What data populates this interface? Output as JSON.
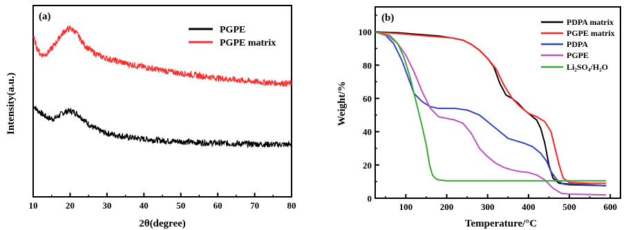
{
  "chart_data": [
    {
      "type": "line",
      "panel_label": "(a)",
      "xlabel": "2θ(degree)",
      "ylabel": "Intensity(a.u.)",
      "xlim": [
        10,
        80
      ],
      "ylim": [
        0,
        100
      ],
      "x_ticks": [
        10,
        20,
        30,
        40,
        50,
        60,
        70,
        80
      ],
      "y_ticks_shown": false,
      "legend_position": "top-right",
      "series": [
        {
          "name": "PGPE",
          "color": "#000000",
          "noise": 1.6,
          "points": [
            [
              10,
              48
            ],
            [
              11,
              45.5
            ],
            [
              12,
              44
            ],
            [
              13,
              42.5
            ],
            [
              14,
              41.3
            ],
            [
              15,
              40.8
            ],
            [
              16,
              41.2
            ],
            [
              17,
              42.4
            ],
            [
              18,
              43.8
            ],
            [
              19,
              44.6
            ],
            [
              20,
              44.9
            ],
            [
              21,
              44.4
            ],
            [
              22,
              43.2
            ],
            [
              23,
              41.6
            ],
            [
              24,
              39.8
            ],
            [
              25,
              38
            ],
            [
              26,
              36.6
            ],
            [
              27,
              35.5
            ],
            [
              28,
              34.6
            ],
            [
              29,
              33.8
            ],
            [
              30,
              33.2
            ],
            [
              35,
              31.4
            ],
            [
              40,
              30.2
            ],
            [
              45,
              29.4
            ],
            [
              50,
              28.9
            ],
            [
              55,
              28.4
            ],
            [
              60,
              28.1
            ],
            [
              65,
              27.8
            ],
            [
              70,
              27.6
            ],
            [
              75,
              27.4
            ],
            [
              80,
              27.3
            ]
          ]
        },
        {
          "name": "PGPE matrix",
          "color": "#ff2a2a",
          "noise": 1.6,
          "points": [
            [
              10,
              84
            ],
            [
              11,
              78
            ],
            [
              12,
              74.5
            ],
            [
              13,
              74.2
            ],
            [
              14,
              75.5
            ],
            [
              15,
              77.5
            ],
            [
              16,
              80
            ],
            [
              17,
              83
            ],
            [
              18,
              85.5
            ],
            [
              19,
              87.3
            ],
            [
              20,
              88
            ],
            [
              21,
              87
            ],
            [
              22,
              84.8
            ],
            [
              23,
              81.8
            ],
            [
              24,
              79.2
            ],
            [
              25,
              77.4
            ],
            [
              26,
              76
            ],
            [
              27,
              74.8
            ],
            [
              28,
              73.8
            ],
            [
              29,
              73
            ],
            [
              30,
              72.3
            ],
            [
              35,
              69.8
            ],
            [
              40,
              67.8
            ],
            [
              45,
              66.1
            ],
            [
              50,
              64.6
            ],
            [
              55,
              63.3
            ],
            [
              60,
              62.1
            ],
            [
              65,
              61.1
            ],
            [
              70,
              60.2
            ],
            [
              75,
              59.6
            ],
            [
              80,
              59.2
            ]
          ]
        }
      ]
    },
    {
      "type": "line",
      "panel_label": "(b)",
      "xlabel": "Temperature/°C",
      "ylabel": "Weight/%",
      "xlim": [
        25,
        625
      ],
      "ylim": [
        0,
        115
      ],
      "x_ticks": [
        100,
        200,
        300,
        400,
        500,
        600
      ],
      "y_ticks": [
        0,
        20,
        40,
        60,
        80,
        100
      ],
      "legend_position": "top-right",
      "series": [
        {
          "name": "PDPA matrix",
          "color": "#000000",
          "points": [
            [
              25,
              100
            ],
            [
              80,
              99.5
            ],
            [
              130,
              98.5
            ],
            [
              180,
              97.5
            ],
            [
              210,
              96.5
            ],
            [
              240,
              95
            ],
            [
              260,
              92.5
            ],
            [
              280,
              89
            ],
            [
              300,
              84
            ],
            [
              315,
              79
            ],
            [
              330,
              69
            ],
            [
              345,
              62
            ],
            [
              360,
              60
            ],
            [
              375,
              57
            ],
            [
              390,
              53
            ],
            [
              405,
              50
            ],
            [
              420,
              47
            ],
            [
              430,
              42
            ],
            [
              440,
              33
            ],
            [
              450,
              20
            ],
            [
              460,
              12
            ],
            [
              475,
              9
            ],
            [
              500,
              8.5
            ],
            [
              550,
              8
            ],
            [
              590,
              7.5
            ]
          ]
        },
        {
          "name": "PGPE matrix",
          "color": "#ff2020",
          "points": [
            [
              25,
              100
            ],
            [
              80,
              99
            ],
            [
              130,
              98
            ],
            [
              180,
              97
            ],
            [
              210,
              96.5
            ],
            [
              240,
              95
            ],
            [
              260,
              92.5
            ],
            [
              280,
              89
            ],
            [
              300,
              84
            ],
            [
              320,
              78
            ],
            [
              340,
              68
            ],
            [
              360,
              60
            ],
            [
              380,
              55
            ],
            [
              400,
              51
            ],
            [
              420,
              49
            ],
            [
              440,
              46
            ],
            [
              455,
              40
            ],
            [
              465,
              30
            ],
            [
              475,
              20
            ],
            [
              485,
              12
            ],
            [
              500,
              9.5
            ],
            [
              550,
              9
            ],
            [
              590,
              9
            ]
          ]
        },
        {
          "name": "PDPA",
          "color": "#3340c8",
          "points": [
            [
              25,
              100
            ],
            [
              50,
              98
            ],
            [
              70,
              93
            ],
            [
              90,
              83
            ],
            [
              105,
              73
            ],
            [
              120,
              63
            ],
            [
              140,
              58
            ],
            [
              160,
              55
            ],
            [
              180,
              54
            ],
            [
              220,
              54
            ],
            [
              250,
              53
            ],
            [
              280,
              50
            ],
            [
              310,
              44
            ],
            [
              330,
              40
            ],
            [
              350,
              36
            ],
            [
              370,
              34.5
            ],
            [
              390,
              33
            ],
            [
              410,
              31
            ],
            [
              430,
              27
            ],
            [
              445,
              22
            ],
            [
              455,
              16
            ],
            [
              470,
              11
            ],
            [
              485,
              8.5
            ],
            [
              500,
              8
            ],
            [
              590,
              7.5
            ]
          ]
        },
        {
          "name": "PGPE",
          "color": "#c050c0",
          "points": [
            [
              25,
              100
            ],
            [
              60,
              97
            ],
            [
              80,
              93
            ],
            [
              100,
              86
            ],
            [
              120,
              76
            ],
            [
              140,
              64
            ],
            [
              160,
              54
            ],
            [
              180,
              49
            ],
            [
              200,
              48
            ],
            [
              220,
              47
            ],
            [
              240,
              45
            ],
            [
              260,
              39
            ],
            [
              280,
              30
            ],
            [
              300,
              25
            ],
            [
              320,
              21
            ],
            [
              340,
              18.5
            ],
            [
              360,
              17
            ],
            [
              380,
              16
            ],
            [
              400,
              15.5
            ],
            [
              420,
              14
            ],
            [
              440,
              11
            ],
            [
              460,
              6
            ],
            [
              480,
              3
            ],
            [
              500,
              2.5
            ],
            [
              590,
              2
            ]
          ]
        },
        {
          "name": "Li₂SO₄/H₂O",
          "color": "#33a833",
          "points": [
            [
              25,
              100
            ],
            [
              60,
              98
            ],
            [
              80,
              93
            ],
            [
              95,
              85
            ],
            [
              110,
              73
            ],
            [
              125,
              58
            ],
            [
              140,
              43
            ],
            [
              150,
              32
            ],
            [
              158,
              20
            ],
            [
              165,
              14
            ],
            [
              172,
              12
            ],
            [
              180,
              11
            ],
            [
              200,
              10.5
            ],
            [
              300,
              10.5
            ],
            [
              400,
              10.5
            ],
            [
              500,
              10.5
            ],
            [
              590,
              10.5
            ]
          ]
        }
      ]
    }
  ]
}
